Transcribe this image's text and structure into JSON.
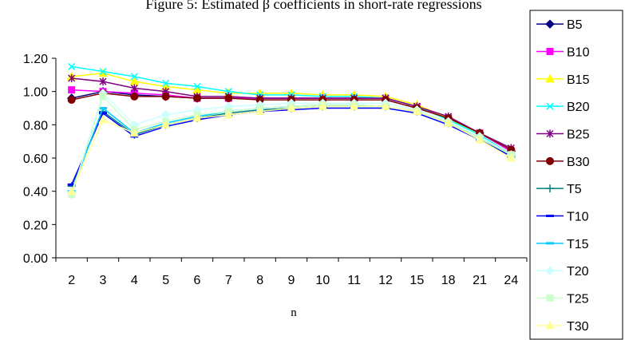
{
  "chart_data": {
    "type": "line",
    "title": "Figure 5: Estimated β coefficients in short-rate regressions",
    "xlabel": "n",
    "ylabel": "",
    "categories": [
      "2",
      "3",
      "4",
      "5",
      "6",
      "7",
      "8",
      "9",
      "10",
      "11",
      "12",
      "15",
      "18",
      "21",
      "24"
    ],
    "ylim": [
      0,
      1.2
    ],
    "yticks": [
      "0.00",
      "0.20",
      "0.40",
      "0.60",
      "0.80",
      "1.00",
      "1.20"
    ],
    "legend_position": "right",
    "series": [
      {
        "name": "B5",
        "color": "#000080",
        "marker": "diamond",
        "values": [
          0.96,
          1.0,
          0.98,
          0.97,
          0.96,
          0.96,
          0.96,
          0.96,
          0.96,
          0.96,
          0.96,
          0.91,
          0.84,
          0.75,
          0.64
        ]
      },
      {
        "name": "B10",
        "color": "#FF00FF",
        "marker": "square",
        "values": [
          1.01,
          1.0,
          0.99,
          0.98,
          0.96,
          0.96,
          0.96,
          0.96,
          0.96,
          0.96,
          0.96,
          0.91,
          0.84,
          0.75,
          0.64
        ]
      },
      {
        "name": "B15",
        "color": "#FFFF00",
        "marker": "triangle",
        "values": [
          1.09,
          1.11,
          1.06,
          1.03,
          1.01,
          0.99,
          0.99,
          0.99,
          0.98,
          0.98,
          0.97,
          0.92,
          0.84,
          0.74,
          0.62
        ]
      },
      {
        "name": "B20",
        "color": "#00FFFF",
        "marker": "x",
        "values": [
          1.15,
          1.12,
          1.09,
          1.05,
          1.03,
          1.0,
          0.98,
          0.98,
          0.97,
          0.97,
          0.96,
          0.91,
          0.83,
          0.74,
          0.62
        ]
      },
      {
        "name": "B25",
        "color": "#800080",
        "marker": "asterisk",
        "values": [
          1.08,
          1.06,
          1.02,
          1.0,
          0.97,
          0.97,
          0.96,
          0.96,
          0.96,
          0.96,
          0.96,
          0.91,
          0.85,
          0.75,
          0.66
        ]
      },
      {
        "name": "B30",
        "color": "#800000",
        "marker": "circle",
        "values": [
          0.95,
          0.99,
          0.97,
          0.97,
          0.96,
          0.96,
          0.95,
          0.95,
          0.95,
          0.95,
          0.95,
          0.9,
          0.84,
          0.75,
          0.65
        ]
      },
      {
        "name": "T5",
        "color": "#008080",
        "marker": "plus",
        "values": [
          0.43,
          0.88,
          0.74,
          0.8,
          0.84,
          0.87,
          0.89,
          0.9,
          0.91,
          0.91,
          0.91,
          0.88,
          0.81,
          0.72,
          0.62
        ]
      },
      {
        "name": "T10",
        "color": "#0000FF",
        "marker": "dash",
        "values": [
          0.44,
          0.87,
          0.73,
          0.79,
          0.83,
          0.86,
          0.88,
          0.89,
          0.9,
          0.9,
          0.9,
          0.87,
          0.8,
          0.71,
          0.61
        ]
      },
      {
        "name": "T15",
        "color": "#00CCFF",
        "marker": "dash",
        "values": [
          0.4,
          0.9,
          0.75,
          0.81,
          0.85,
          0.88,
          0.9,
          0.91,
          0.92,
          0.92,
          0.91,
          0.88,
          0.81,
          0.72,
          0.62
        ]
      },
      {
        "name": "T20",
        "color": "#CCFFFF",
        "marker": "diamond",
        "values": [
          0.38,
          0.99,
          0.8,
          0.86,
          0.89,
          0.91,
          0.92,
          0.93,
          0.93,
          0.93,
          0.93,
          0.89,
          0.82,
          0.73,
          0.62
        ]
      },
      {
        "name": "T25",
        "color": "#CCFFCC",
        "marker": "square",
        "values": [
          0.38,
          0.97,
          0.77,
          0.82,
          0.86,
          0.88,
          0.9,
          0.91,
          0.92,
          0.92,
          0.91,
          0.88,
          0.81,
          0.72,
          0.62
        ]
      },
      {
        "name": "T30",
        "color": "#FFFF99",
        "marker": "triangle",
        "values": [
          0.4,
          0.83,
          0.75,
          0.8,
          0.84,
          0.86,
          0.88,
          0.9,
          0.91,
          0.91,
          0.91,
          0.88,
          0.81,
          0.71,
          0.6
        ]
      }
    ]
  }
}
